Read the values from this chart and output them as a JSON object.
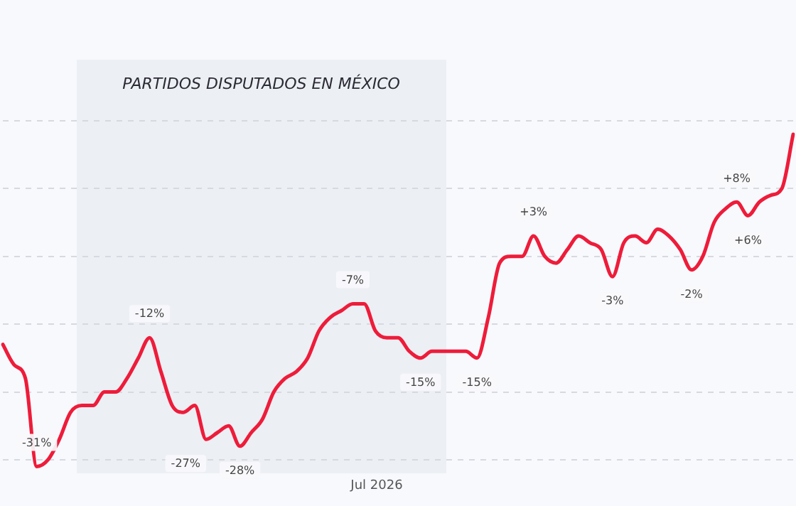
{
  "chart_data": {
    "type": "line",
    "categories": [
      null,
      null,
      null,
      null,
      null,
      null,
      null,
      null,
      null,
      null,
      null,
      null,
      null,
      null,
      null,
      null,
      null,
      null,
      null,
      null,
      null,
      null,
      null,
      null,
      null,
      null,
      null,
      null,
      null,
      null,
      null,
      null,
      null,
      null,
      null,
      null,
      null,
      null,
      null,
      null,
      null,
      null,
      null,
      null,
      null,
      null,
      null,
      null,
      null,
      null,
      null,
      null,
      null,
      null,
      null,
      null,
      null,
      null,
      null,
      null,
      null,
      null,
      null,
      null,
      null,
      null,
      null,
      null,
      null,
      null,
      null
    ],
    "series": [
      {
        "color": "#ee1c3a",
        "values": [
          -13,
          -16,
          -18,
          -31,
          -30,
          -27,
          -23,
          -22,
          -22,
          -20,
          -20,
          -18,
          -15,
          -12,
          -17,
          -22,
          -23,
          -22,
          -27,
          -26,
          -25,
          -28,
          -26,
          -24,
          -20,
          -18,
          -17,
          -15,
          -11,
          -9,
          -8,
          -7,
          -7,
          -11,
          -12,
          -12,
          -14,
          -15,
          -14,
          -14,
          -14,
          -14,
          -15,
          -9,
          -1,
          0,
          0,
          3,
          0,
          -1,
          1,
          3,
          2,
          1,
          -3,
          2,
          3,
          2,
          4,
          3,
          1,
          -2,
          0,
          5,
          7,
          8,
          6,
          8,
          9,
          10,
          18
        ],
        "value_labels": [
          null,
          null,
          null,
          "-31%",
          null,
          null,
          null,
          null,
          null,
          null,
          null,
          null,
          null,
          "-12%",
          null,
          null,
          null,
          null,
          "-27%",
          null,
          null,
          "-28%",
          null,
          null,
          null,
          null,
          null,
          null,
          null,
          null,
          null,
          "-7%",
          null,
          null,
          null,
          null,
          null,
          "-15%",
          null,
          null,
          null,
          null,
          "-15%",
          null,
          null,
          null,
          null,
          "+3%",
          null,
          null,
          null,
          null,
          null,
          null,
          "-3%",
          null,
          null,
          null,
          null,
          null,
          null,
          "-2%",
          null,
          null,
          null,
          "+8%",
          "+6%",
          null,
          null,
          null,
          null
        ]
      }
    ],
    "yticks": [
      {
        "value": -30,
        "label": null
      },
      {
        "value": -20,
        "label": null
      },
      {
        "value": -10,
        "label": null
      },
      {
        "value": 0,
        "label": null
      },
      {
        "value": 10,
        "label": null
      },
      {
        "value": 20,
        "label": null
      }
    ],
    "annotations": [
      "PARTIDOS DISPUTADOS EN MÉXICO",
      "Jul 2026"
    ],
    "grid": true,
    "tick_labels": "x",
    "marker": "none"
  }
}
